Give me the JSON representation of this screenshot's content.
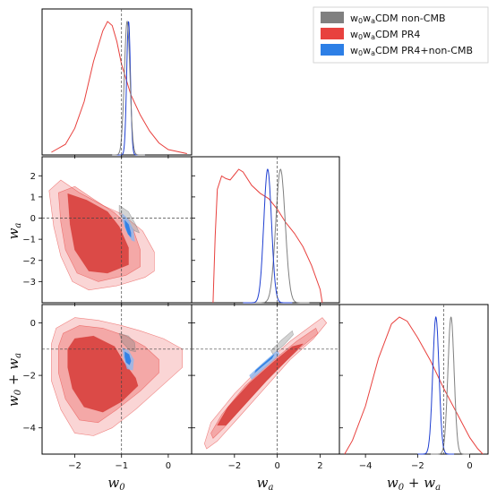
{
  "chart_data": {
    "type": "triangle-corner",
    "parameters": [
      "w0",
      "wa",
      "w0+wa"
    ],
    "axis_labels": {
      "w0": "w0",
      "wa": "wa",
      "w0_plus_wa": "w0 + wa"
    },
    "ranges": {
      "w0": [
        -2.7,
        0.5
      ],
      "wa": [
        -4.0,
        2.9
      ],
      "w0_plus_wa": [
        -5.0,
        0.7
      ]
    },
    "ticks": {
      "w0": [
        -2,
        -1,
        0
      ],
      "wa": [
        -3,
        -2,
        -1,
        0,
        1,
        2
      ],
      "wa_x": [
        -2,
        0,
        2
      ],
      "w0_plus_wa": [
        -4,
        -2,
        0
      ]
    },
    "reference_lines": {
      "w0": -1,
      "wa": 0,
      "w0_plus_wa": -1
    },
    "legend": {
      "placement": "top-right",
      "entries": [
        {
          "label": "w0waCDM non-CMB",
          "color": "#808080"
        },
        {
          "label": "w0waCDM PR4",
          "color": "#e8413e"
        },
        {
          "label": "w0waCDM PR4+non-CMB",
          "color": "#2d7fe6"
        }
      ]
    },
    "series": [
      {
        "name": "w0waCDM non-CMB",
        "color": "#808080",
        "w0_posterior": {
          "mean": -0.88,
          "sd": 0.06
        },
        "wa_posterior": {
          "mean": 0.15,
          "sd": 0.22
        },
        "w0pwa_posterior": {
          "mean": -0.72,
          "sd": 0.12
        }
      },
      {
        "name": "w0waCDM PR4",
        "color": "#e8413e",
        "w0_curve": {
          "x": [
            -2.5,
            -2.2,
            -2.0,
            -1.8,
            -1.6,
            -1.4,
            -1.3,
            -1.2,
            -1.1,
            -1.0,
            -0.8,
            -0.6,
            -0.4,
            -0.2,
            0.0,
            0.4
          ],
          "y": [
            0.02,
            0.08,
            0.2,
            0.4,
            0.7,
            0.93,
            1.0,
            0.97,
            0.85,
            0.68,
            0.45,
            0.3,
            0.18,
            0.09,
            0.04,
            0.01
          ]
        },
        "wa_curve": {
          "x": [
            -3.0,
            -2.9,
            -2.8,
            -2.6,
            -2.4,
            -2.2,
            -2.0,
            -1.8,
            -1.6,
            -1.2,
            -0.8,
            -0.4,
            0.0,
            0.4,
            0.8,
            1.2,
            1.6,
            2.0,
            2.1
          ],
          "y": [
            0.0,
            0.5,
            0.85,
            0.95,
            0.93,
            0.92,
            0.96,
            1.0,
            0.98,
            0.88,
            0.82,
            0.78,
            0.7,
            0.6,
            0.52,
            0.42,
            0.28,
            0.1,
            0.0
          ]
        },
        "w0pwa_curve": {
          "x": [
            -4.8,
            -4.5,
            -4.0,
            -3.5,
            -3.0,
            -2.7,
            -2.4,
            -2.0,
            -1.5,
            -1.0,
            -0.5,
            0.0,
            0.3,
            0.5
          ],
          "y": [
            0.0,
            0.1,
            0.35,
            0.7,
            0.95,
            1.0,
            0.97,
            0.85,
            0.68,
            0.48,
            0.3,
            0.12,
            0.04,
            0.0
          ]
        }
      },
      {
        "name": "w0waCDM PR4+non-CMB",
        "color": "#2d7fe6",
        "w0_posterior": {
          "mean": -0.85,
          "sd": 0.04
        },
        "wa_posterior": {
          "mean": -0.45,
          "sd": 0.18
        },
        "w0pwa_posterior": {
          "mean": -1.3,
          "sd": 0.12
        }
      }
    ]
  }
}
